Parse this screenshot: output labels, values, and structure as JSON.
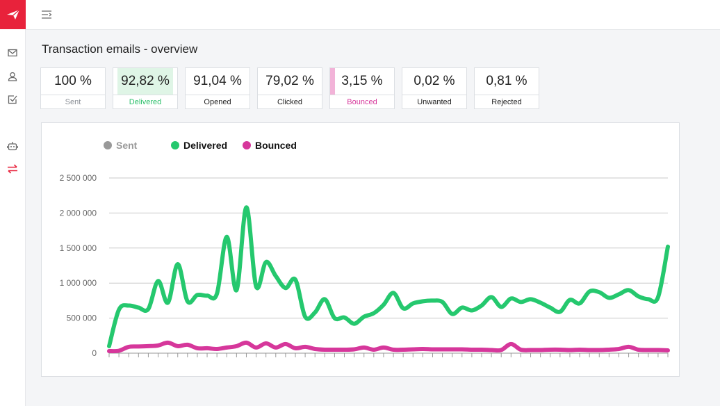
{
  "app": {
    "brand_color": "#e8223b",
    "logo_icon": "paper-plane-icon",
    "sidebar_icons": [
      "mail-icon",
      "user-icon",
      "checkbox-icon",
      "robot-icon",
      "transfer-arrows-icon"
    ]
  },
  "page": {
    "title": "Transaction emails - overview"
  },
  "stats": [
    {
      "value": "100 %",
      "label": "Sent"
    },
    {
      "value": "92,82 %",
      "label": "Delivered"
    },
    {
      "value": "91,04 %",
      "label": "Opened"
    },
    {
      "value": "79,02 %",
      "label": "Clicked"
    },
    {
      "value": "3,15 %",
      "label": "Bounced"
    },
    {
      "value": "0,02 %",
      "label": "Unwanted"
    },
    {
      "value": "0,81 %",
      "label": "Rejected"
    }
  ],
  "chart_data": {
    "type": "line",
    "legend_position": "top-left",
    "grid": true,
    "ylim": [
      0,
      2500000
    ],
    "y_ticks": [
      "0",
      "500 000",
      "1 000 000",
      "1 500 000",
      "2 000 000",
      "2 500 000"
    ],
    "series": [
      {
        "name": "Sent",
        "color": "#999999",
        "active": false,
        "values": []
      },
      {
        "name": "Delivered",
        "color": "#25c86e",
        "active": true,
        "values": [
          100000,
          620000,
          680000,
          650000,
          630000,
          1030000,
          720000,
          1270000,
          740000,
          830000,
          820000,
          850000,
          1660000,
          900000,
          2080000,
          950000,
          1300000,
          1100000,
          930000,
          1050000,
          520000,
          580000,
          770000,
          500000,
          510000,
          420000,
          520000,
          570000,
          690000,
          860000,
          640000,
          710000,
          740000,
          750000,
          730000,
          560000,
          650000,
          610000,
          680000,
          800000,
          660000,
          780000,
          730000,
          770000,
          720000,
          650000,
          590000,
          760000,
          710000,
          880000,
          870000,
          790000,
          840000,
          900000,
          810000,
          770000,
          800000,
          1520000
        ]
      },
      {
        "name": "Bounced",
        "color": "#d6379b",
        "active": true,
        "values": [
          30000,
          35000,
          90000,
          95000,
          100000,
          110000,
          150000,
          100000,
          120000,
          70000,
          70000,
          60000,
          80000,
          100000,
          150000,
          80000,
          140000,
          80000,
          130000,
          70000,
          90000,
          60000,
          50000,
          50000,
          50000,
          55000,
          80000,
          50000,
          80000,
          50000,
          50000,
          55000,
          60000,
          55000,
          55000,
          55000,
          55000,
          50000,
          50000,
          45000,
          45000,
          130000,
          50000,
          45000,
          45000,
          50000,
          50000,
          45000,
          50000,
          45000,
          45000,
          50000,
          60000,
          90000,
          50000,
          45000,
          45000,
          40000
        ]
      }
    ]
  }
}
